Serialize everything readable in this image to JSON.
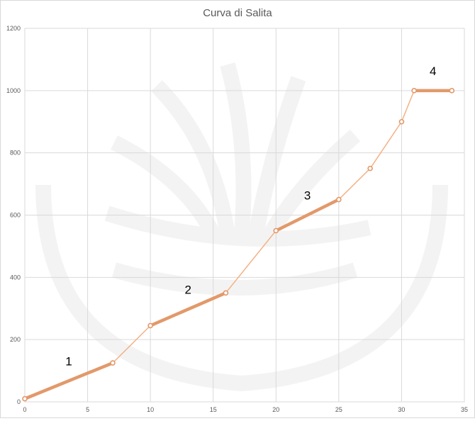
{
  "chart_data": {
    "type": "line",
    "title": "Curva di Salita",
    "xlabel": "",
    "ylabel": "",
    "xlim": [
      0,
      35
    ],
    "ylim": [
      0,
      1200
    ],
    "x_ticks": [
      0,
      5,
      10,
      15,
      20,
      25,
      30,
      35
    ],
    "y_ticks": [
      0,
      200,
      400,
      600,
      800,
      1000,
      1200
    ],
    "grid": true,
    "legend": "none",
    "series": [
      {
        "color": "#f4b183",
        "points": [
          {
            "x": 0,
            "y": 10
          },
          {
            "x": 7,
            "y": 125
          },
          {
            "x": 10,
            "y": 245
          },
          {
            "x": 16,
            "y": 350
          },
          {
            "x": 20,
            "y": 550
          },
          {
            "x": 25,
            "y": 650
          },
          {
            "x": 27.5,
            "y": 750
          },
          {
            "x": 30,
            "y": 900
          },
          {
            "x": 31,
            "y": 1000
          },
          {
            "x": 34,
            "y": 1000
          }
        ]
      }
    ],
    "highlight_color": "#e2996a",
    "highlight_segments": [
      {
        "label": "1",
        "from": 0,
        "to": 1
      },
      {
        "label": "2",
        "from": 2,
        "to": 3
      },
      {
        "label": "3",
        "from": 4,
        "to": 5
      },
      {
        "label": "4",
        "from": 8,
        "to": 9
      }
    ]
  }
}
